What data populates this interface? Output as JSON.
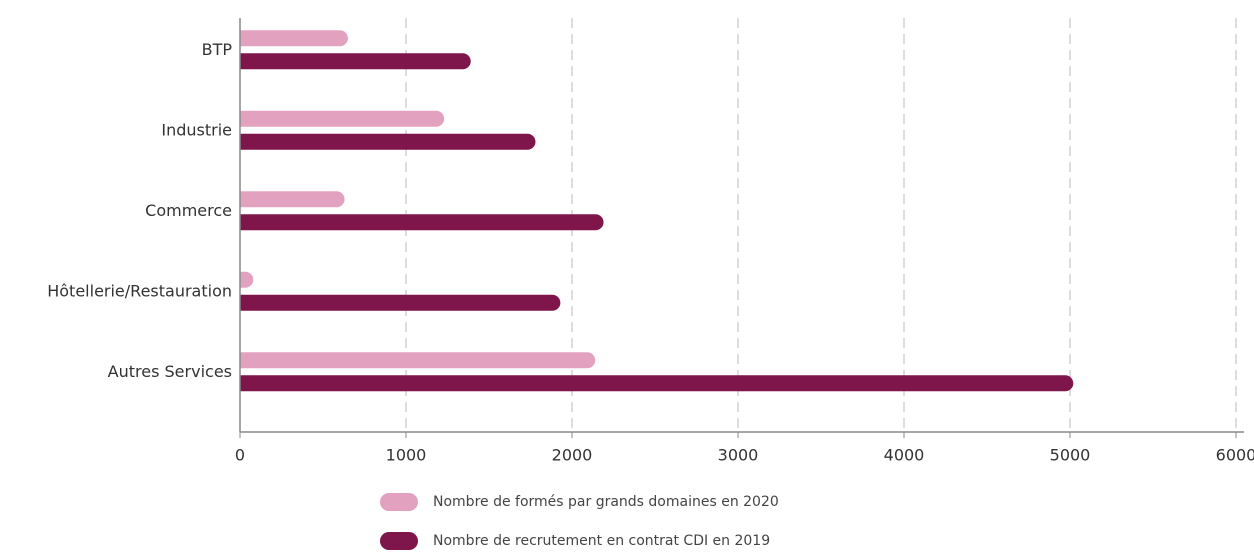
{
  "chart_data": {
    "type": "barh",
    "categories": [
      "BTP",
      "Industrie",
      "Commerce",
      "Hôtellerie/Restauration",
      "Autres Services"
    ],
    "series": [
      {
        "name": "Nombre de formés par grands domaines en 2020",
        "color": "#e3a1c0",
        "values": [
          650,
          1230,
          630,
          80,
          2140
        ]
      },
      {
        "name": "Nombre de recrutement en contrat CDI en 2019",
        "color": "#7e154b",
        "values": [
          1390,
          1780,
          2190,
          1930,
          5020
        ]
      }
    ],
    "xlim": [
      0,
      6000
    ],
    "xticks": [
      0,
      1000,
      2000,
      3000,
      4000,
      5000,
      6000
    ],
    "grid": true
  }
}
